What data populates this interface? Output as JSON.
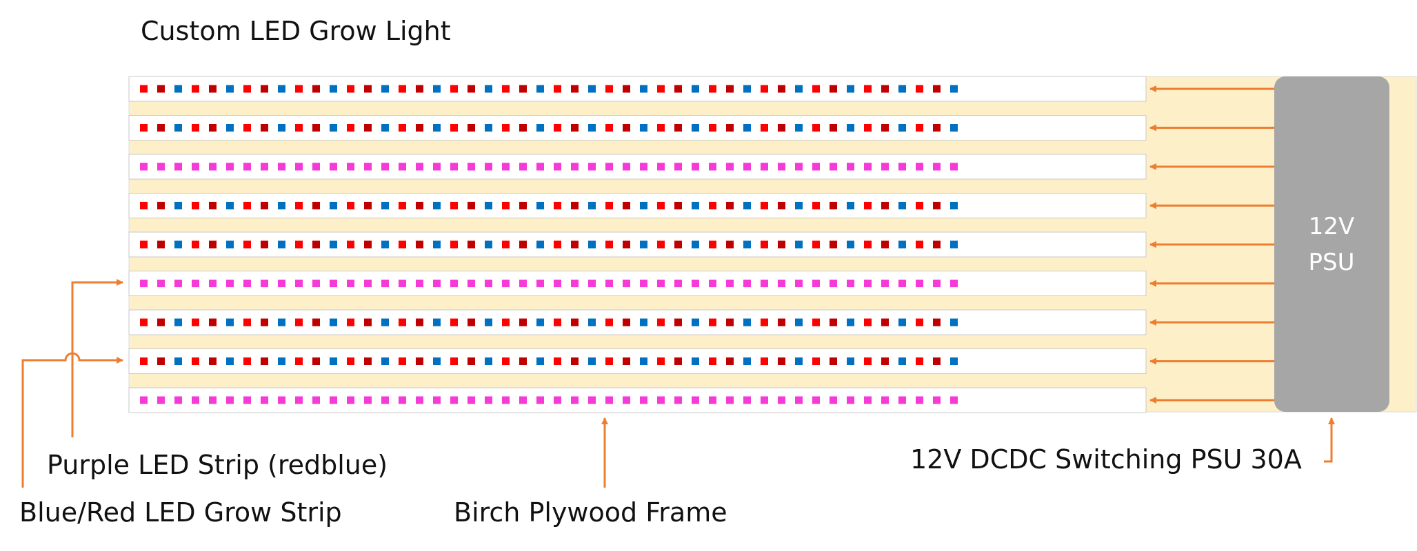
{
  "title": "Custom LED Grow Light",
  "psu": {
    "label_line1": "12V",
    "label_line2": "PSU"
  },
  "callouts": {
    "purple_strip": "Purple LED Strip (redblue)",
    "bluered_strip": "Blue/Red LED Grow Strip",
    "frame": "Birch Plywood Frame",
    "psu": "12V DCDC Switching PSU 30A"
  },
  "strips": [
    {
      "type": "blue-red"
    },
    {
      "type": "blue-red"
    },
    {
      "type": "purple"
    },
    {
      "type": "blue-red"
    },
    {
      "type": "blue-red"
    },
    {
      "type": "purple"
    },
    {
      "type": "blue-red"
    },
    {
      "type": "blue-red"
    },
    {
      "type": "purple"
    }
  ],
  "led_patterns": {
    "blue-red": [
      "red",
      "dark-red",
      "blue",
      "red",
      "dark-red",
      "blue"
    ],
    "purple": [
      "magenta"
    ]
  },
  "colors": {
    "frame": "#fdf0c8",
    "psu": "#a6a6a6",
    "arrow": "#ed7d31",
    "red": "#ff0000",
    "dark-red": "#c00000",
    "blue": "#0070c0",
    "magenta": "#f53ad8"
  }
}
